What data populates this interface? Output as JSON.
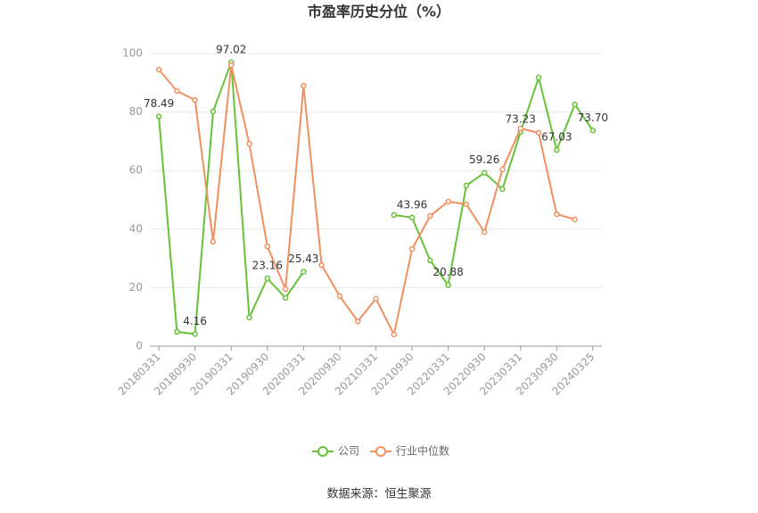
{
  "chart_data": {
    "type": "line",
    "title": "市盈率历史分位（%）",
    "categories": [
      "20180331",
      null,
      "20180930",
      null,
      "20190331",
      null,
      "20190930",
      null,
      "20200331",
      null,
      "20200930",
      null,
      "20210331",
      null,
      "20210930",
      null,
      "20220331",
      null,
      "20220930",
      null,
      "20230331",
      null,
      "20230930",
      null,
      "20240325"
    ],
    "series": [
      {
        "name": "公司",
        "color": "#67c23a",
        "values": [
          78.49,
          4.9,
          4.16,
          80.2,
          97.02,
          9.8,
          23.16,
          16.5,
          25.43,
          null,
          null,
          null,
          null,
          44.8,
          43.96,
          29.3,
          20.88,
          54.9,
          59.26,
          53.7,
          73.23,
          91.8,
          67.03,
          82.6,
          73.7
        ],
        "value_labels": [
          "78.49",
          null,
          "4.16",
          null,
          "97.02",
          null,
          "23.16",
          null,
          "25.43",
          null,
          null,
          null,
          null,
          null,
          "43.96",
          null,
          "20.88",
          null,
          "59.26",
          null,
          "73.23",
          null,
          "67.03",
          null,
          "73.70"
        ]
      },
      {
        "name": "行业中位数",
        "color": "#f0905f",
        "values": [
          94.5,
          87.2,
          84.1,
          35.7,
          96.0,
          69.2,
          34.1,
          19.5,
          89.0,
          27.7,
          17.1,
          8.5,
          16.2,
          4.0,
          33.2,
          44.5,
          49.4,
          48.5,
          39.0,
          60.4,
          74.4,
          72.9,
          45.1,
          43.3,
          null
        ]
      }
    ],
    "ylim": [
      0,
      100
    ],
    "yticks": [
      0,
      20,
      40,
      60,
      80,
      100
    ],
    "grid": true,
    "legend": "bottom",
    "source": "数据来源：恒生聚源"
  }
}
